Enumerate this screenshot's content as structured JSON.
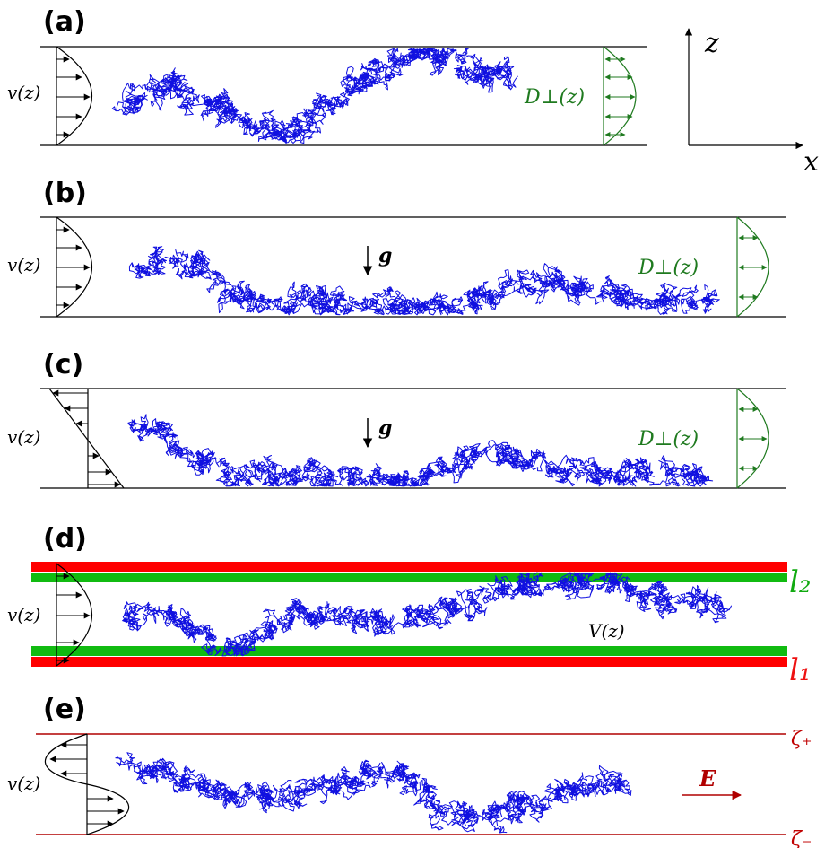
{
  "panels": {
    "a": {
      "label": "(a)",
      "v_label": "v(z)",
      "d_label": "D⊥(z)",
      "axis_z": "z",
      "axis_x": "x"
    },
    "b": {
      "label": "(b)",
      "v_label": "v(z)",
      "g_label": "g",
      "d_label": "D⊥(z)"
    },
    "c": {
      "label": "(c)",
      "v_label": "v(z)",
      "g_label": "g",
      "d_label": "D⊥(z)"
    },
    "d": {
      "label": "(d)",
      "v_label": "v(z)",
      "V_label": "V(z)",
      "l2_label": "l₂",
      "l1_label": "l₁"
    },
    "e": {
      "label": "(e)",
      "v_label": "v(z)",
      "E_label": "E",
      "zeta_plus": "ζ₊",
      "zeta_minus": "ζ₋"
    }
  },
  "colors": {
    "walk": "#1010e0",
    "diffusion": "#1f7a1f",
    "band_red": "#ff0000",
    "band_green": "#11bb11",
    "boundary_e": "#b00000"
  },
  "walks": [
    {
      "panel": "a",
      "seed": 11,
      "steps": 2600,
      "x0": 140,
      "z0": 0.4,
      "x1": 575,
      "step": 4.5,
      "anchors": [
        [
          140,
          0.42
        ],
        [
          195,
          0.62
        ],
        [
          230,
          0.4
        ],
        [
          300,
          0.18
        ],
        [
          340,
          0.15
        ],
        [
          380,
          0.5
        ],
        [
          420,
          0.72
        ],
        [
          470,
          0.95
        ],
        [
          500,
          0.92
        ],
        [
          540,
          0.7
        ],
        [
          575,
          0.7
        ]
      ]
    },
    {
      "panel": "b",
      "seed": 23,
      "steps": 3000,
      "x0": 155,
      "x1": 795,
      "step": 4.5,
      "anchors": [
        [
          155,
          0.5
        ],
        [
          200,
          0.55
        ],
        [
          230,
          0.45
        ],
        [
          260,
          0.15
        ],
        [
          330,
          0.12
        ],
        [
          430,
          0.08
        ],
        [
          500,
          0.05
        ],
        [
          560,
          0.25
        ],
        [
          600,
          0.35
        ],
        [
          650,
          0.28
        ],
        [
          700,
          0.18
        ],
        [
          760,
          0.15
        ],
        [
          795,
          0.2
        ]
      ]
    },
    {
      "panel": "c",
      "seed": 37,
      "steps": 3000,
      "x0": 150,
      "x1": 790,
      "step": 4.5,
      "anchors": [
        [
          150,
          0.7
        ],
        [
          175,
          0.6
        ],
        [
          210,
          0.3
        ],
        [
          260,
          0.08
        ],
        [
          330,
          0.08
        ],
        [
          420,
          0.05
        ],
        [
          480,
          0.1
        ],
        [
          530,
          0.28
        ],
        [
          580,
          0.35
        ],
        [
          620,
          0.22
        ],
        [
          680,
          0.12
        ],
        [
          740,
          0.15
        ],
        [
          790,
          0.1
        ]
      ]
    },
    {
      "panel": "d",
      "seed": 53,
      "steps": 3200,
      "x0": 140,
      "x1": 810,
      "step": 4.5,
      "anchors": [
        [
          140,
          0.55
        ],
        [
          190,
          0.45
        ],
        [
          240,
          0.1
        ],
        [
          300,
          0.3
        ],
        [
          350,
          0.6
        ],
        [
          400,
          0.42
        ],
        [
          440,
          0.4
        ],
        [
          500,
          0.55
        ],
        [
          560,
          0.8
        ],
        [
          620,
          0.92
        ],
        [
          680,
          0.9
        ],
        [
          740,
          0.75
        ],
        [
          810,
          0.55
        ]
      ]
    },
    {
      "panel": "e",
      "seed": 71,
      "steps": 2800,
      "x0": 150,
      "x1": 700,
      "step": 4.5,
      "anchors": [
        [
          150,
          0.7
        ],
        [
          200,
          0.55
        ],
        [
          250,
          0.35
        ],
        [
          290,
          0.4
        ],
        [
          330,
          0.3
        ],
        [
          380,
          0.55
        ],
        [
          420,
          0.7
        ],
        [
          450,
          0.55
        ],
        [
          490,
          0.2
        ],
        [
          550,
          0.2
        ],
        [
          600,
          0.3
        ],
        [
          650,
          0.45
        ],
        [
          700,
          0.55
        ]
      ]
    }
  ]
}
